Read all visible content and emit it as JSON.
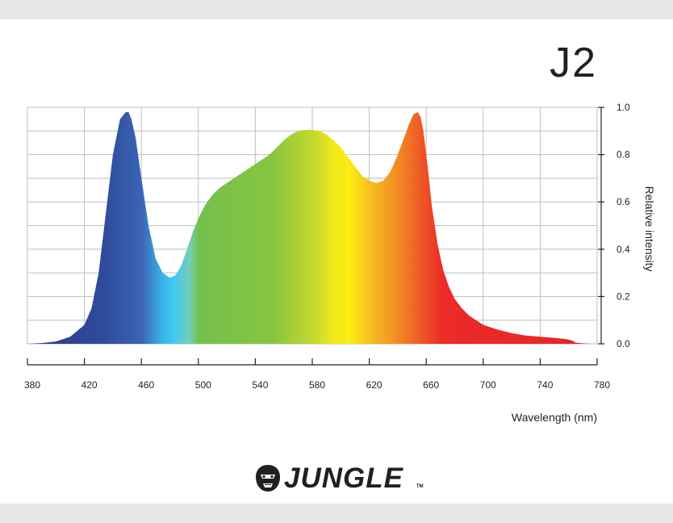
{
  "title": "J2",
  "brand": {
    "name": "JUNGLE",
    "trademark": "TM"
  },
  "chart_data": {
    "type": "area",
    "title": "J2",
    "xlabel": "Wavelength (nm)",
    "ylabel": "Relative intensity",
    "xlim": [
      380,
      780
    ],
    "ylim": [
      0,
      1.0
    ],
    "x_ticks": [
      380,
      420,
      460,
      500,
      540,
      580,
      620,
      660,
      700,
      740,
      780
    ],
    "x_tick_labels": [
      "380",
      "420",
      "460",
      "500",
      "540",
      "580",
      "620",
      "660",
      "700",
      "740",
      "780"
    ],
    "y_ticks": [
      0,
      0.2,
      0.4,
      0.6,
      0.8,
      1.0
    ],
    "y_tick_labels": [
      "0.0",
      "0.2",
      "0.4",
      "0.6",
      "0.8",
      "1.0"
    ],
    "y_axis_side": "right",
    "grid": true,
    "fill": "visible spectrum gradient",
    "series": [
      {
        "x": [
          380,
          390,
          400,
          410,
          420,
          425,
          430,
          435,
          440,
          445,
          449,
          451,
          453,
          456,
          460,
          465,
          470,
          475,
          480,
          484,
          488,
          492,
          496,
          500,
          505,
          510,
          515,
          520,
          525,
          530,
          535,
          540,
          545,
          550,
          555,
          560,
          565,
          570,
          575,
          580,
          585,
          590,
          595,
          600,
          605,
          610,
          615,
          620,
          625,
          630,
          635,
          640,
          645,
          648,
          651,
          654,
          656,
          658,
          661,
          664,
          668,
          672,
          676,
          680,
          685,
          690,
          695,
          700,
          710,
          720,
          730,
          740,
          750,
          758,
          762,
          765,
          770,
          775,
          780
        ],
        "values": [
          0.0,
          0.003,
          0.01,
          0.03,
          0.08,
          0.15,
          0.3,
          0.55,
          0.8,
          0.95,
          0.98,
          0.98,
          0.95,
          0.87,
          0.7,
          0.5,
          0.36,
          0.3,
          0.28,
          0.29,
          0.33,
          0.4,
          0.47,
          0.53,
          0.59,
          0.63,
          0.66,
          0.68,
          0.7,
          0.72,
          0.74,
          0.76,
          0.78,
          0.8,
          0.83,
          0.86,
          0.885,
          0.9,
          0.905,
          0.905,
          0.9,
          0.885,
          0.86,
          0.83,
          0.79,
          0.75,
          0.71,
          0.69,
          0.68,
          0.69,
          0.73,
          0.8,
          0.88,
          0.93,
          0.97,
          0.98,
          0.96,
          0.9,
          0.75,
          0.58,
          0.42,
          0.31,
          0.24,
          0.19,
          0.15,
          0.12,
          0.1,
          0.08,
          0.06,
          0.045,
          0.035,
          0.03,
          0.025,
          0.02,
          0.015,
          0.005,
          0.002,
          0.0,
          0.0
        ]
      }
    ]
  },
  "colors": {
    "background": "#ffffff",
    "band": "#e6e7e8",
    "grid": "#bcbec0",
    "axis": "#231f20",
    "text": "#231f20"
  }
}
